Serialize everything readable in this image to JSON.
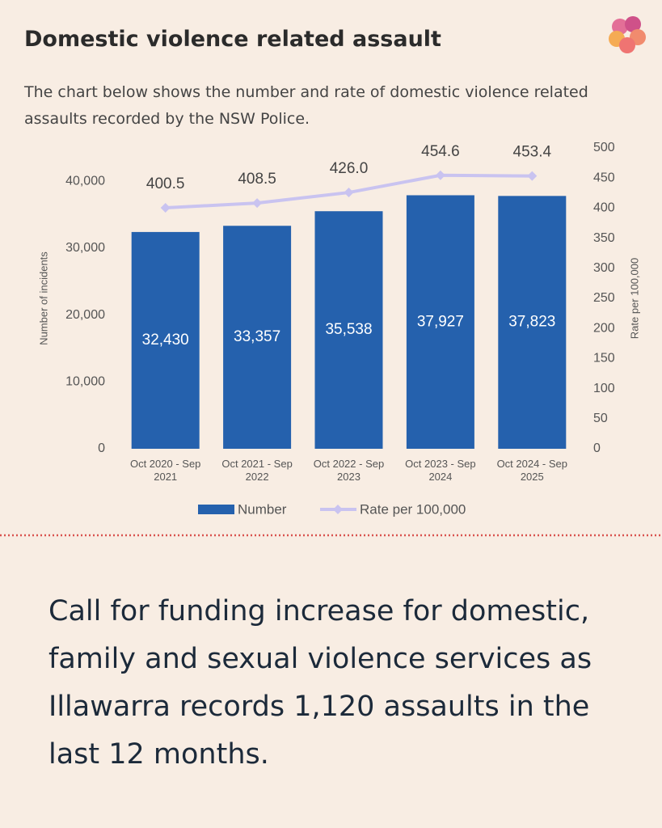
{
  "header": {
    "title": "Domestic violence related assault",
    "subtitle": "The chart below shows the number and rate of domestic violence related assaults recorded by the NSW Police."
  },
  "chart_data": {
    "type": "bar",
    "categories": [
      "Oct 2020 - Sep 2021",
      "Oct 2021 - Sep 2022",
      "Oct 2022 - Sep 2023",
      "Oct 2023 - Sep 2024",
      "Oct 2024 - Sep 2025"
    ],
    "series": [
      {
        "name": "Number",
        "color": "#2561ad",
        "values": [
          32430,
          33357,
          35538,
          37927,
          37823
        ],
        "value_labels": [
          "32,430",
          "33,357",
          "35,538",
          "37,927",
          "37,823"
        ]
      },
      {
        "name": "Rate per 100,000",
        "type": "line",
        "axis": "y2",
        "color": "#c9c3f0",
        "values": [
          400.5,
          408.5,
          426.0,
          454.6,
          453.4
        ],
        "value_labels": [
          "400.5",
          "408.5",
          "426.0",
          "454.6",
          "453.4"
        ]
      }
    ],
    "ylabel": "Number of incidents",
    "y2label": "Rate per 100,000",
    "ylim": [
      0,
      45000
    ],
    "yticks": [
      0,
      {
        "value": 10000,
        "label": "10,000"
      },
      {
        "value": 20000,
        "label": "20,000"
      },
      {
        "value": 30000,
        "label": "30,000"
      },
      {
        "value": 40000,
        "label": "40,000"
      }
    ],
    "y2lim": [
      0,
      500
    ],
    "y2ticks": [
      0,
      50,
      100,
      150,
      200,
      250,
      300,
      350,
      400,
      450,
      500
    ],
    "grid": false,
    "legend": "bottom"
  },
  "headline": "Call for funding increase for domestic, family and sexual violence services as Illawarra records 1,120 assaults in the last 12 months."
}
